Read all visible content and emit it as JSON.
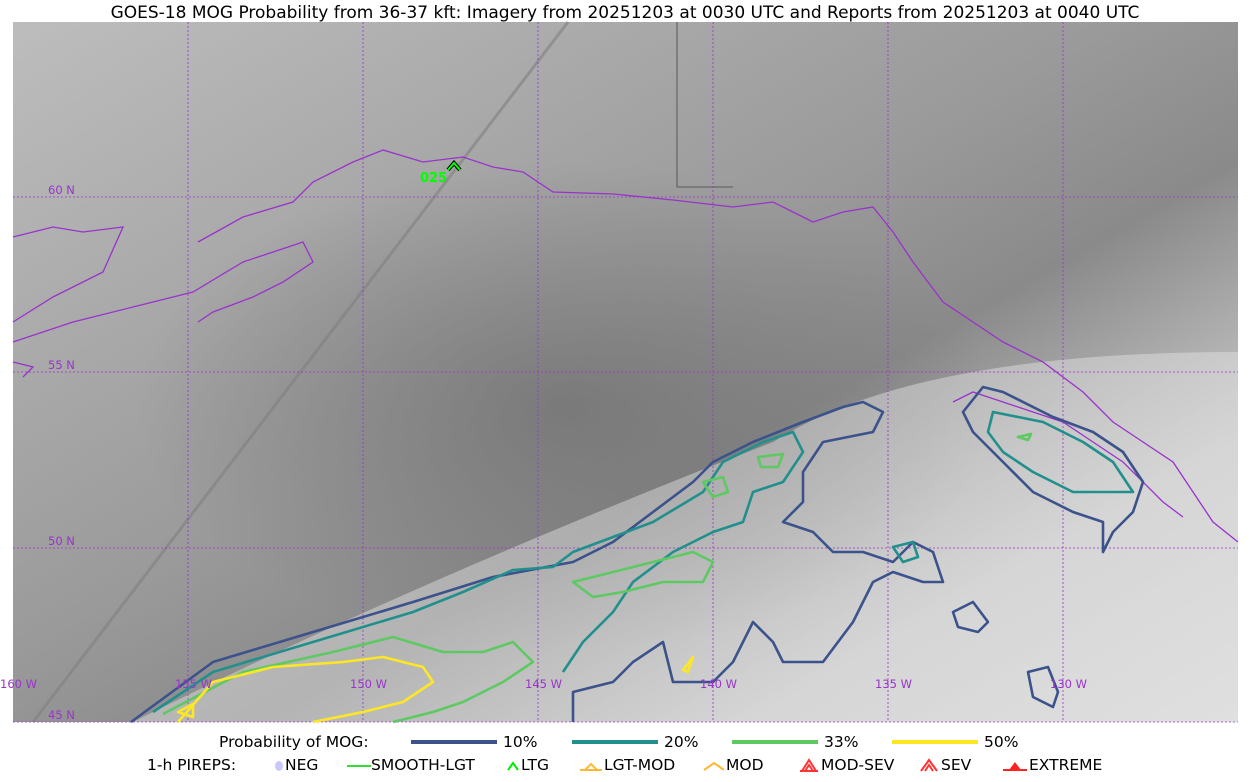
{
  "title": "GOES-18 MOG Probability from 36-37 kft: Imagery from 20251203 at 0030 UTC and Reports from 20251203 at 0040 UTC",
  "map": {
    "lat_labels": [
      "60 N",
      "55 N",
      "50 N",
      "45 N"
    ],
    "lon_labels": [
      "160 W",
      "155 W",
      "150 W",
      "145 W",
      "140 W",
      "135 W",
      "130 W"
    ],
    "grid_color": "#9933cc",
    "coast_color": "#9933cc",
    "pirep": {
      "label": "025",
      "type": "LTG",
      "color": "#00ff00"
    }
  },
  "legend": {
    "mog": {
      "label": "Probability of MOG:",
      "items": [
        {
          "label": "10%",
          "color": "#3b528b"
        },
        {
          "label": "20%",
          "color": "#21908d"
        },
        {
          "label": "33%",
          "color": "#5ec962"
        },
        {
          "label": "50%",
          "color": "#fde725"
        }
      ]
    },
    "pireps": {
      "label": "1-h PIREPS:",
      "items": [
        {
          "label": "NEG",
          "icon": "neg-icon",
          "color": "#c8c8ff"
        },
        {
          "label": "SMOOTH-LGT",
          "icon": "smooth-lgt-line-icon",
          "color": "#33dd33"
        },
        {
          "label": "LTG",
          "icon": "ltg-chevron-icon",
          "color": "#00ee00"
        },
        {
          "label": "LGT-MOD",
          "icon": "lgt-mod-icon",
          "color": "#ffb833"
        },
        {
          "label": "MOD",
          "icon": "mod-icon",
          "color": "#ffb833"
        },
        {
          "label": "MOD-SEV",
          "icon": "mod-sev-icon",
          "color": "#ff3333"
        },
        {
          "label": "SEV",
          "icon": "sev-icon",
          "color": "#ff3333"
        },
        {
          "label": "EXTREME",
          "icon": "extreme-icon",
          "color": "#ff2222"
        }
      ]
    }
  }
}
